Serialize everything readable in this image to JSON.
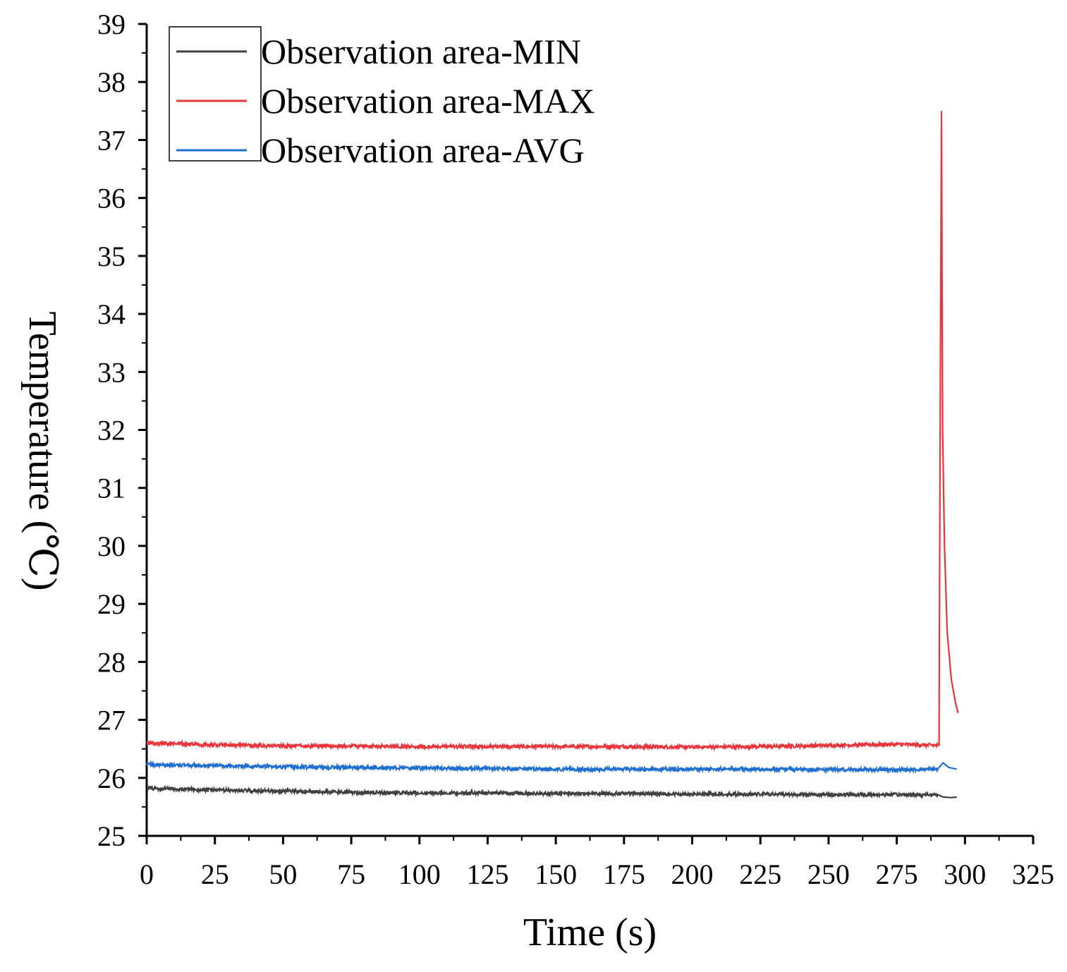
{
  "chart_data": {
    "type": "line",
    "title": "",
    "xlabel": "Time (s)",
    "ylabel": "Temperature (℃)",
    "xlim": [
      0,
      325
    ],
    "ylim": [
      25,
      39
    ],
    "x_ticks": [
      0,
      25,
      50,
      75,
      100,
      125,
      150,
      175,
      200,
      225,
      250,
      275,
      300,
      325
    ],
    "y_ticks": [
      25,
      26,
      27,
      28,
      29,
      30,
      31,
      32,
      33,
      34,
      35,
      36,
      37,
      38,
      39
    ],
    "x_tick_labels": [
      "0",
      "25",
      "50",
      "75",
      "100",
      "125",
      "150",
      "175",
      "200",
      "225",
      "250",
      "275",
      "300",
      "325"
    ],
    "y_tick_labels": [
      "25",
      "26",
      "27",
      "28",
      "29",
      "30",
      "31",
      "32",
      "33",
      "34",
      "35",
      "36",
      "37",
      "38",
      "39"
    ],
    "grid": false,
    "legend_position": "top-left",
    "series": [
      {
        "name": "Observation area-MIN",
        "color": "#404040",
        "points": [
          [
            0,
            25.82
          ],
          [
            25,
            25.79
          ],
          [
            50,
            25.77
          ],
          [
            75,
            25.75
          ],
          [
            100,
            25.74
          ],
          [
            125,
            25.74
          ],
          [
            150,
            25.73
          ],
          [
            175,
            25.73
          ],
          [
            200,
            25.72
          ],
          [
            225,
            25.72
          ],
          [
            250,
            25.71
          ],
          [
            275,
            25.71
          ],
          [
            290,
            25.71
          ],
          [
            292,
            25.67
          ],
          [
            295,
            25.66
          ],
          [
            297,
            25.67
          ]
        ]
      },
      {
        "name": "Observation area-MAX",
        "color": "#e8343a",
        "points": [
          [
            0,
            26.6
          ],
          [
            25,
            26.57
          ],
          [
            50,
            26.55
          ],
          [
            75,
            26.55
          ],
          [
            100,
            26.54
          ],
          [
            125,
            26.54
          ],
          [
            150,
            26.54
          ],
          [
            175,
            26.54
          ],
          [
            200,
            26.53
          ],
          [
            225,
            26.54
          ],
          [
            250,
            26.56
          ],
          [
            275,
            26.58
          ],
          [
            290.5,
            26.56
          ],
          [
            291.0,
            33.1
          ],
          [
            291.4,
            37.5
          ],
          [
            291.8,
            32.0
          ],
          [
            292.5,
            30.0
          ],
          [
            293.5,
            28.5
          ],
          [
            295,
            27.7
          ],
          [
            296.5,
            27.3
          ],
          [
            297.5,
            27.12
          ]
        ]
      },
      {
        "name": "Observation area-AVG",
        "color": "#1f6fd1",
        "points": [
          [
            0,
            26.23
          ],
          [
            25,
            26.21
          ],
          [
            50,
            26.19
          ],
          [
            75,
            26.18
          ],
          [
            100,
            26.17
          ],
          [
            125,
            26.16
          ],
          [
            150,
            26.15
          ],
          [
            175,
            26.15
          ],
          [
            200,
            26.15
          ],
          [
            225,
            26.15
          ],
          [
            250,
            26.14
          ],
          [
            275,
            26.14
          ],
          [
            290,
            26.15
          ],
          [
            292,
            26.26
          ],
          [
            294,
            26.18
          ],
          [
            297,
            26.15
          ]
        ]
      }
    ]
  }
}
